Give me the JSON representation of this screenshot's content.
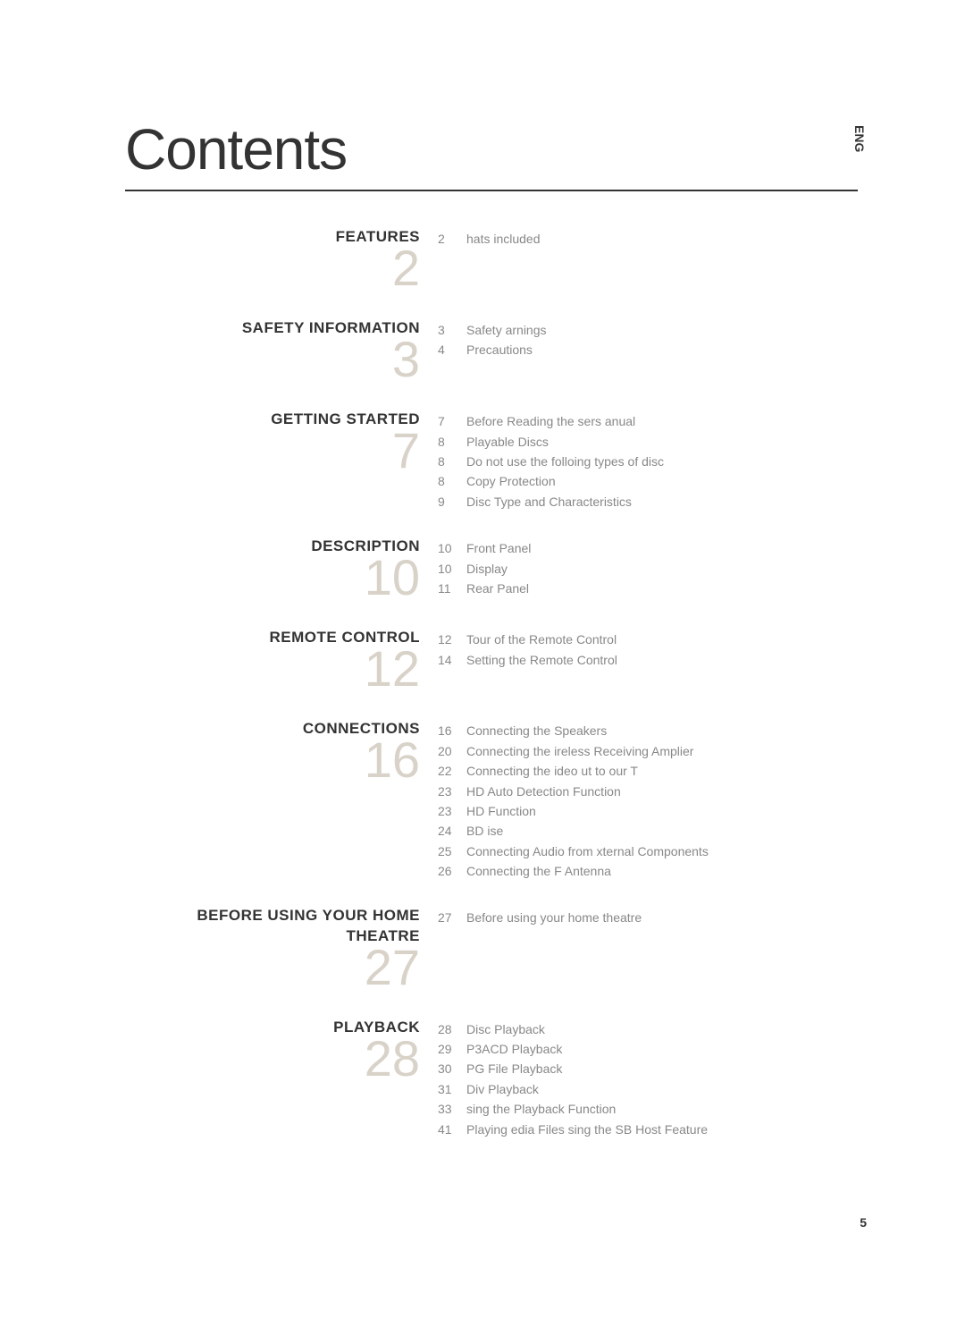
{
  "title": "Contents",
  "lang_tag": "ENG",
  "page_number": "5",
  "sections": [
    {
      "title": "FEATURES",
      "big_num": "2",
      "items": [
        {
          "page": "2",
          "text": "hats included"
        }
      ]
    },
    {
      "title": "SAFETY INFORMATION",
      "big_num": "3",
      "items": [
        {
          "page": "3",
          "text": "Safety arnings"
        },
        {
          "page": "4",
          "text": "Precautions"
        }
      ]
    },
    {
      "title": "GETTING STARTED",
      "big_num": "7",
      "items": [
        {
          "page": "7",
          "text": "Before Reading the sers anual"
        },
        {
          "page": "8",
          "text": "Playable Discs"
        },
        {
          "page": "8",
          "text": "Do not use the folloing types of disc"
        },
        {
          "page": "8",
          "text": "Copy Protection"
        },
        {
          "page": "9",
          "text": "Disc Type and Characteristics"
        }
      ]
    },
    {
      "title": "DESCRIPTION",
      "big_num": "10",
      "items": [
        {
          "page": "10",
          "text": "Front Panel"
        },
        {
          "page": "10",
          "text": "Display"
        },
        {
          "page": "11",
          "text": "Rear Panel"
        }
      ]
    },
    {
      "title": "REMOTE CONTROL",
      "big_num": "12",
      "items": [
        {
          "page": "12",
          "text": "Tour of the Remote Control"
        },
        {
          "page": "14",
          "text": "Setting the Remote Control"
        }
      ]
    },
    {
      "title": "CONNECTIONS",
      "big_num": "16",
      "items": [
        {
          "page": "16",
          "text": "Connecting the Speakers"
        },
        {
          "page": "20",
          "text": "Connecting the ireless Receiving Amplier"
        },
        {
          "page": "22",
          "text": "Connecting the ideo ut to our T"
        },
        {
          "page": "23",
          "text": "HD Auto Detection Function"
        },
        {
          "page": "23",
          "text": "HD Function"
        },
        {
          "page": "24",
          "text": "BD ise"
        },
        {
          "page": "25",
          "text": "Connecting Audio from xternal Components"
        },
        {
          "page": "26",
          "text": "Connecting the F Antenna"
        }
      ]
    },
    {
      "title": "BEFORE USING YOUR HOME THEATRE",
      "big_num": "27",
      "items": [
        {
          "page": "27",
          "text": "Before using your home theatre"
        }
      ]
    },
    {
      "title": "PLAYBACK",
      "big_num": "28",
      "items": [
        {
          "page": "28",
          "text": "Disc Playback"
        },
        {
          "page": "29",
          "text": "P3ACD Playback"
        },
        {
          "page": "30",
          "text": "PG File Playback"
        },
        {
          "page": "31",
          "text": "Div Playback"
        },
        {
          "page": "33",
          "text": "sing the Playback Function"
        },
        {
          "page": "41",
          "text": "Playing edia Files sing the SB Host Feature"
        }
      ]
    }
  ]
}
